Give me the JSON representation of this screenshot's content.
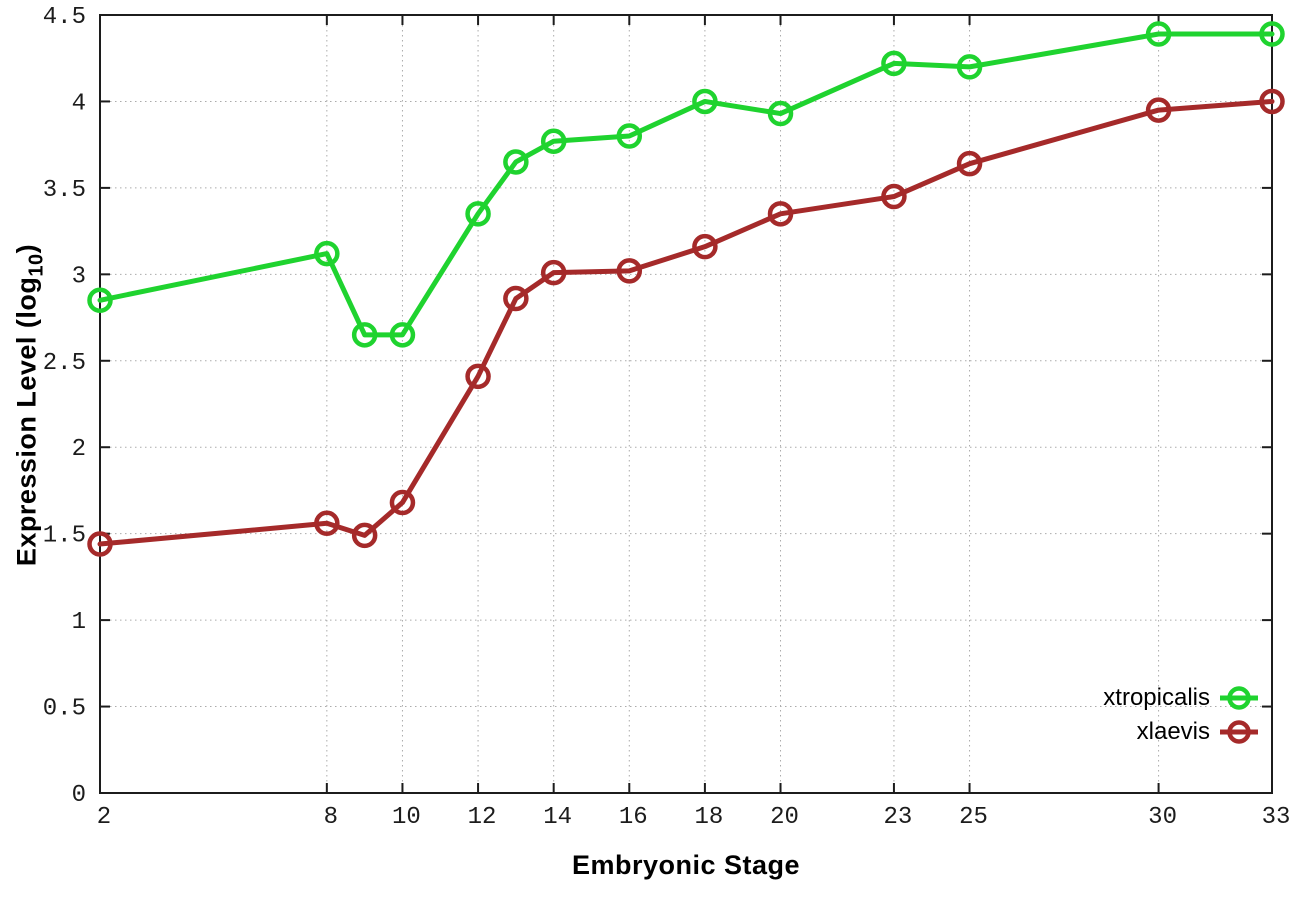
{
  "chart_data": {
    "type": "line",
    "title": "",
    "xlabel": "Embryonic Stage",
    "ylabel": {
      "pre": "Expression Level (log",
      "sub": "10",
      "post": ")"
    },
    "xlim": [
      2,
      33
    ],
    "ylim": [
      0,
      4.5
    ],
    "grid": true,
    "legend_position": "bottom-right",
    "x": [
      2,
      8,
      9,
      10,
      12,
      13,
      14,
      16,
      18,
      20,
      23,
      25,
      30,
      33
    ],
    "xticks": [
      2,
      8,
      10,
      12,
      14,
      16,
      18,
      20,
      23,
      25,
      30,
      33
    ],
    "yticks": [
      0,
      0.5,
      1,
      1.5,
      2,
      2.5,
      3,
      3.5,
      4,
      4.5
    ],
    "series": [
      {
        "name": "xtropicalis",
        "color": "#1fd32f",
        "marker": "open-circle",
        "values": [
          2.85,
          3.12,
          2.65,
          2.65,
          3.35,
          3.65,
          3.77,
          3.8,
          4.0,
          3.93,
          4.22,
          4.2,
          4.39,
          4.39
        ]
      },
      {
        "name": "xlaevis",
        "color": "#a52a2a",
        "marker": "open-circle",
        "values": [
          1.44,
          1.56,
          1.49,
          1.68,
          2.41,
          2.86,
          3.01,
          3.02,
          3.16,
          3.35,
          3.45,
          3.64,
          3.95,
          4.0
        ]
      }
    ],
    "colors": {
      "grid": "#ababab",
      "axis": "#1c1c1c",
      "tick_text": "#1c1c1c"
    }
  },
  "legend": {
    "items": [
      {
        "label": "xtropicalis"
      },
      {
        "label": "xlaevis"
      }
    ]
  }
}
